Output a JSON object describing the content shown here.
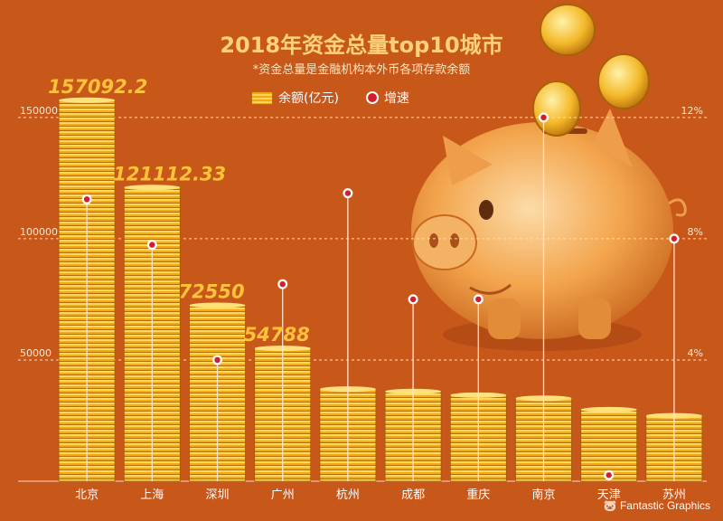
{
  "chart_data": {
    "type": "bar",
    "title": "2018年资金总量top10城市",
    "subtitle": "*资金总量是金融机构本外币各项存款余额",
    "categories": [
      "北京",
      "上海",
      "深圳",
      "广州",
      "杭州",
      "成都",
      "重庆",
      "南京",
      "天津",
      "苏州"
    ],
    "series": [
      {
        "name": "余额(亿元)",
        "values": [
          157092.2,
          121112.33,
          72550,
          54788,
          38000,
          37000,
          35500,
          34200,
          29500,
          27000
        ],
        "data_labels": [
          "157092.2",
          "121112.33",
          "72550",
          "54788",
          "",
          "",
          "",
          "",
          "",
          ""
        ],
        "y_axis": "left"
      },
      {
        "name": "增速",
        "values": [
          9.3,
          7.8,
          4.0,
          6.5,
          9.5,
          6.0,
          6.0,
          12.0,
          0.2,
          8.0
        ],
        "unit": "%",
        "y_axis": "right"
      }
    ],
    "left_axis": {
      "ylim": [
        0,
        160000
      ],
      "ticks": [
        "50000",
        "100000",
        "150000"
      ],
      "tick_values": [
        50000,
        100000,
        150000
      ]
    },
    "right_axis": {
      "ylim": [
        0,
        12.8
      ],
      "ticks": [
        "4%",
        "8%",
        "12%"
      ],
      "tick_values": [
        4,
        8,
        12
      ]
    },
    "grid": true,
    "legend_position": "top-center"
  },
  "credit": "Fantastic Graphics",
  "colors": {
    "background": "#c8571a",
    "coin": "#f5b521",
    "marker": "#d31d2a",
    "title": "#ffd27a"
  }
}
